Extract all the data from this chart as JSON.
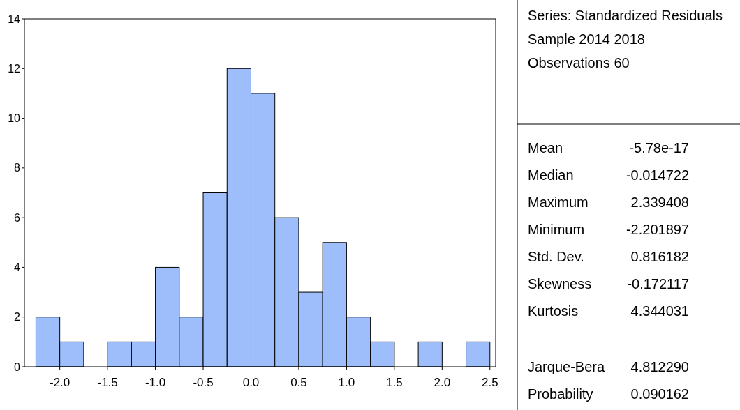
{
  "chart_data": {
    "type": "histogram",
    "bins": [
      -2.25,
      -2,
      -1.75,
      -1.5,
      -1.25,
      -1,
      -0.75,
      -0.5,
      -0.25,
      0,
      0.25,
      0.5,
      0.75,
      1,
      1.25,
      1.5,
      1.75,
      2,
      2.25,
      2.5
    ],
    "values": [
      2,
      1,
      0,
      1,
      1,
      4,
      2,
      7,
      12,
      11,
      6,
      3,
      5,
      2,
      1,
      0,
      1,
      0,
      1
    ],
    "color": "#9dbefb",
    "xlim": [
      -2.37,
      2.56
    ],
    "ylim": [
      0,
      14
    ],
    "xticks": [
      {
        "value": -2,
        "label": "-2.0"
      },
      {
        "value": -1.5,
        "label": "-1.5"
      },
      {
        "value": -1,
        "label": "-1.0"
      },
      {
        "value": -0.5,
        "label": "-0.5"
      },
      {
        "value": 0,
        "label": "0.0"
      },
      {
        "value": 0.5,
        "label": "0.5"
      },
      {
        "value": 1,
        "label": "1.0"
      },
      {
        "value": 1.5,
        "label": "1.5"
      },
      {
        "value": 2,
        "label": "2.0"
      },
      {
        "value": 2.5,
        "label": "2.5"
      }
    ],
    "yticks": [
      0,
      2,
      4,
      6,
      8,
      10,
      12,
      14
    ],
    "grid": false,
    "annotations": [
      "Series: Standardized Residuals",
      "Sample 2014 2018",
      "Observations 60",
      "Mean",
      "-5.78e-17",
      "Median",
      "-0.014722",
      "Maximum",
      "2.339408",
      "Minimum",
      "-2.201897",
      "Std. Dev.",
      "0.816182",
      "Skewness",
      "-0.172117",
      "Kurtosis",
      "4.344031",
      "Jarque-Bera",
      "4.812290",
      "Probability",
      "0.090162"
    ]
  }
}
